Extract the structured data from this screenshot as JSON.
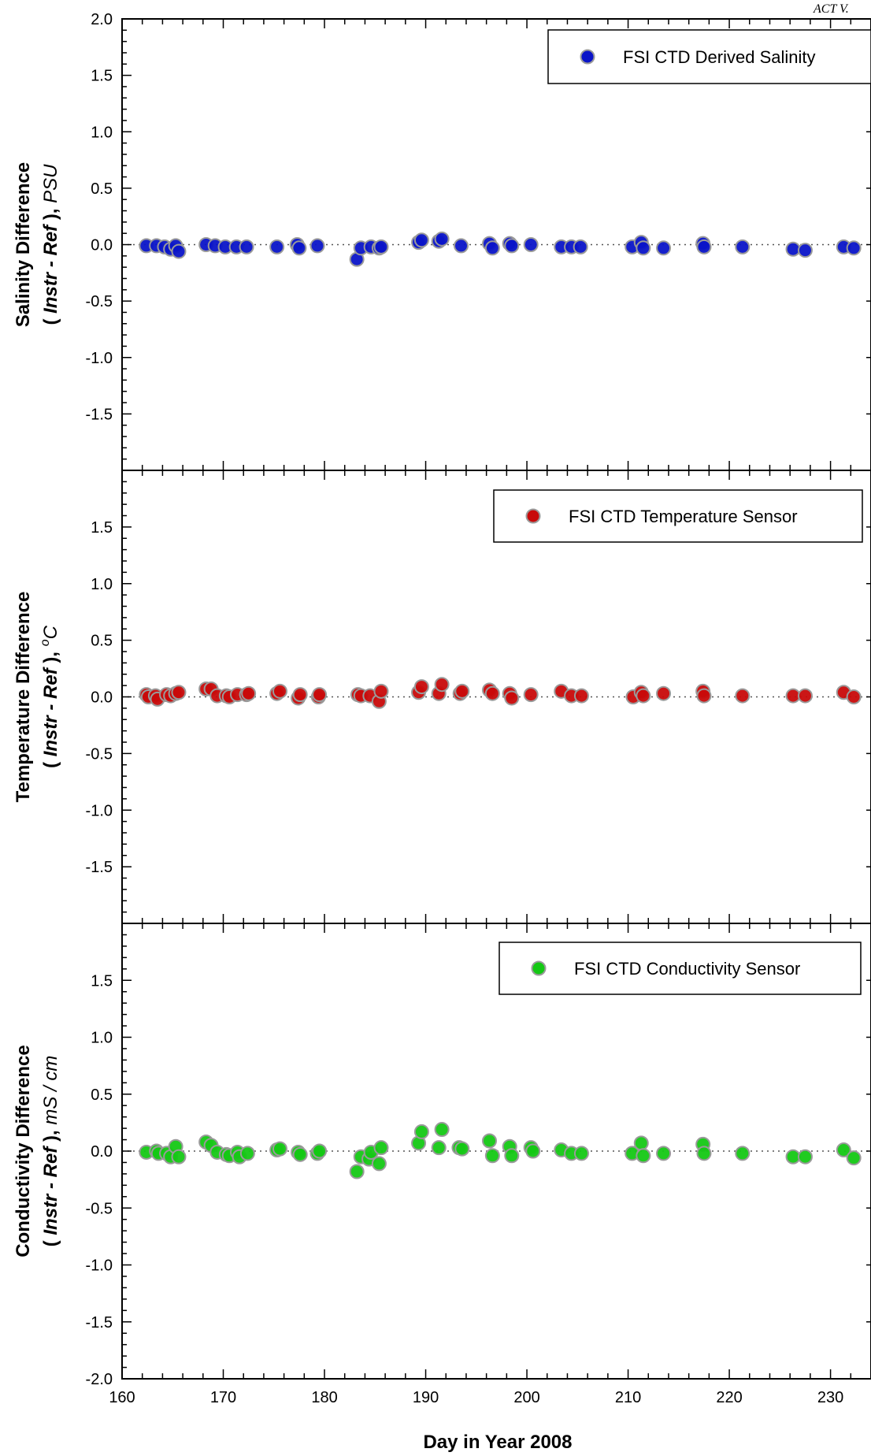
{
  "page": {
    "corner_text": "ACT V."
  },
  "chart_data": [
    {
      "type": "scatter",
      "ylabel_line1": "Salinity Difference",
      "ylabel_line2_pre": "( ",
      "ylabel_line2_bold": "Instr - Ref",
      "ylabel_line2_post": " ), ",
      "ylabel_unit": "PSU",
      "ylabel_unit_sup": "",
      "ylim": [
        -2.0,
        2.0
      ],
      "yticks": [
        "2.0",
        "1.5",
        "1.0",
        "0.5",
        "0.0",
        "-0.5",
        "-1.0",
        "-1.5"
      ],
      "xlim": [
        160,
        234
      ],
      "reference_line": 0,
      "grid": false,
      "legend_position": "top-right",
      "color": "#0a14c8",
      "series": [
        {
          "name": "FSI CTD Derived Salinity",
          "x": [
            162.4,
            163.4,
            164.2,
            164.8,
            165.3,
            165.6,
            168.3,
            169.2,
            170.2,
            171.3,
            172.3,
            175.3,
            177.3,
            177.5,
            179.3,
            183.2,
            183.6,
            184.6,
            185.4,
            185.6,
            189.3,
            189.6,
            191.3,
            191.6,
            193.5,
            196.3,
            196.6,
            198.3,
            198.5,
            200.4,
            203.4,
            204.4,
            205.3,
            210.4,
            211.3,
            211.5,
            213.5,
            217.4,
            217.5,
            221.3,
            226.3,
            227.5,
            231.3,
            232.3
          ],
          "y": [
            -0.01,
            -0.01,
            -0.02,
            -0.04,
            -0.01,
            -0.06,
            0.0,
            -0.01,
            -0.02,
            -0.02,
            -0.02,
            -0.02,
            0.0,
            -0.03,
            -0.01,
            -0.13,
            -0.03,
            -0.02,
            -0.03,
            -0.02,
            0.02,
            0.04,
            0.03,
            0.05,
            -0.01,
            0.01,
            -0.03,
            0.01,
            -0.01,
            0.0,
            -0.02,
            -0.02,
            -0.02,
            -0.02,
            0.02,
            -0.03,
            -0.03,
            0.01,
            -0.02,
            -0.02,
            -0.04,
            -0.05,
            -0.02,
            -0.03
          ]
        }
      ]
    },
    {
      "type": "scatter",
      "ylabel_line1": "Temperature Difference",
      "ylabel_line2_pre": "( ",
      "ylabel_line2_bold": "Instr - Ref",
      "ylabel_line2_post": " ), ",
      "ylabel_unit": "C",
      "ylabel_unit_sup": "o",
      "ylim": [
        -2.0,
        2.0
      ],
      "yticks": [
        "1.5",
        "1.0",
        "0.5",
        "0.0",
        "-0.5",
        "-1.0",
        "-1.5"
      ],
      "xlim": [
        160,
        234
      ],
      "reference_line": 0,
      "grid": false,
      "legend_position": "top-right",
      "color": "#c80a0a",
      "series": [
        {
          "name": "FSI CTD Temperature Sensor",
          "x": [
            162.4,
            162.6,
            163.3,
            163.5,
            164.4,
            164.8,
            165.3,
            165.6,
            168.3,
            168.8,
            169.4,
            170.3,
            170.6,
            171.4,
            172.3,
            172.5,
            175.3,
            175.6,
            177.4,
            177.6,
            179.4,
            179.5,
            183.3,
            183.6,
            184.5,
            185.4,
            185.6,
            189.3,
            189.6,
            191.3,
            191.6,
            193.4,
            193.6,
            196.3,
            196.6,
            198.3,
            198.5,
            200.4,
            203.4,
            204.4,
            205.4,
            210.5,
            211.3,
            211.5,
            213.5,
            217.4,
            217.5,
            221.3,
            226.3,
            227.5,
            231.3,
            232.3
          ],
          "y": [
            0.02,
            0.0,
            0.01,
            -0.02,
            0.02,
            0.01,
            0.03,
            0.04,
            0.07,
            0.07,
            0.01,
            0.01,
            0.0,
            0.02,
            0.02,
            0.03,
            0.03,
            0.05,
            -0.01,
            0.02,
            0.0,
            0.02,
            0.02,
            0.01,
            0.01,
            -0.04,
            0.05,
            0.04,
            0.09,
            0.03,
            0.11,
            0.03,
            0.05,
            0.06,
            0.03,
            0.03,
            -0.01,
            0.02,
            0.05,
            0.01,
            0.01,
            0.0,
            0.04,
            0.01,
            0.03,
            0.05,
            0.01,
            0.01,
            0.01,
            0.01,
            0.04,
            0.0
          ]
        }
      ]
    },
    {
      "type": "scatter",
      "ylabel_line1": "Conductivity Difference",
      "ylabel_line2_pre": "( ",
      "ylabel_line2_bold": "Instr - Ref",
      "ylabel_line2_post": " ), ",
      "ylabel_unit": "mS / cm",
      "ylabel_unit_sup": "",
      "ylim": [
        -2.0,
        2.0
      ],
      "yticks": [
        "1.5",
        "1.0",
        "0.5",
        "0.0",
        "-0.5",
        "-1.0",
        "-1.5",
        "-2.0"
      ],
      "xlim": [
        160,
        234
      ],
      "xticks": [
        "160",
        "170",
        "180",
        "190",
        "200",
        "210",
        "220",
        "230"
      ],
      "xlabel": "Day in Year 2008",
      "reference_line": 0,
      "grid": false,
      "legend_position": "top-right",
      "color": "#14c814",
      "series": [
        {
          "name": "FSI CTD Conductivity Sensor",
          "x": [
            162.4,
            163.4,
            163.6,
            164.4,
            164.8,
            165.3,
            165.6,
            168.3,
            168.8,
            169.4,
            170.3,
            170.6,
            171.4,
            171.6,
            172.4,
            175.3,
            175.6,
            177.4,
            177.6,
            179.3,
            179.5,
            183.2,
            183.6,
            184.4,
            184.6,
            185.4,
            185.6,
            189.3,
            189.6,
            191.3,
            191.6,
            193.3,
            193.6,
            196.3,
            196.6,
            198.3,
            198.5,
            200.4,
            200.6,
            203.4,
            204.4,
            205.4,
            210.4,
            211.3,
            211.5,
            213.5,
            217.4,
            217.5,
            221.3,
            226.3,
            227.5,
            231.3,
            232.3
          ],
          "y": [
            -0.01,
            0.0,
            -0.02,
            -0.02,
            -0.05,
            0.04,
            -0.05,
            0.08,
            0.05,
            -0.01,
            -0.03,
            -0.04,
            -0.01,
            -0.05,
            -0.02,
            0.01,
            0.02,
            -0.01,
            -0.03,
            -0.02,
            0.0,
            -0.18,
            -0.05,
            -0.07,
            -0.01,
            -0.11,
            0.03,
            0.07,
            0.17,
            0.03,
            0.19,
            0.03,
            0.02,
            0.09,
            -0.04,
            0.04,
            -0.04,
            0.03,
            0.0,
            0.01,
            -0.02,
            -0.02,
            -0.02,
            0.07,
            -0.04,
            -0.02,
            0.06,
            -0.02,
            -0.02,
            -0.05,
            -0.05,
            0.01,
            -0.06
          ]
        }
      ]
    }
  ]
}
